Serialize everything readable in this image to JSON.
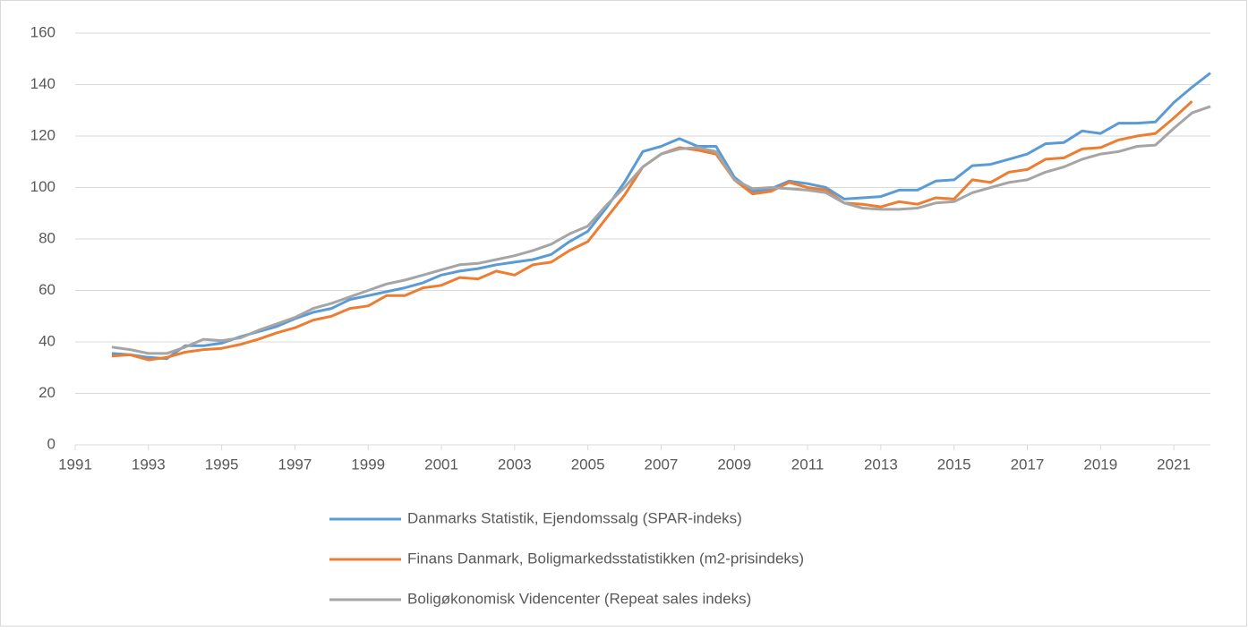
{
  "chart_data": {
    "type": "line",
    "x": [
      1992,
      1992.5,
      1993,
      1993.5,
      1994,
      1994.5,
      1995,
      1995.5,
      1996,
      1996.5,
      1997,
      1997.5,
      1998,
      1998.5,
      1999,
      1999.5,
      2000,
      2000.5,
      2001,
      2001.5,
      2002,
      2002.5,
      2003,
      2003.5,
      2004,
      2004.5,
      2005,
      2005.5,
      2006,
      2006.5,
      2007,
      2007.5,
      2008,
      2008.5,
      2009,
      2009.5,
      2010,
      2010.5,
      2011,
      2011.5,
      2012,
      2012.5,
      2013,
      2013.5,
      2014,
      2014.5,
      2015,
      2015.5,
      2016,
      2016.5,
      2017,
      2017.5,
      2018,
      2018.5,
      2019,
      2019.5,
      2020,
      2020.5,
      2021,
      2021.5,
      2022
    ],
    "series": [
      {
        "name": "Danmarks Statistik, Ejendomssalg (SPAR-indeks)",
        "color": "#5b9bd5",
        "values": [
          35.5,
          35,
          34,
          33.5,
          38.5,
          38.5,
          39.5,
          42,
          44,
          46,
          49,
          51.5,
          53,
          56.5,
          58,
          59.5,
          61,
          63,
          66,
          67.5,
          68.5,
          70,
          71,
          72,
          74,
          79,
          83,
          92,
          102,
          114,
          116,
          119,
          116,
          116,
          104,
          98.5,
          99.5,
          102.5,
          101.5,
          100,
          95.5,
          96,
          96.5,
          99,
          99,
          102.5,
          103,
          108.5,
          109,
          111,
          113,
          117,
          117.5,
          122,
          121,
          125,
          125,
          125.5,
          133,
          139,
          144.5
        ]
      },
      {
        "name": "Finans Danmark, Boligmarkedsstatistikken (m2-prisindeks)",
        "color": "#ed7d31",
        "values": [
          34.5,
          35,
          33,
          34,
          36,
          37,
          37.5,
          39,
          41,
          43.5,
          45.5,
          48.5,
          50,
          53,
          54,
          58,
          58,
          61,
          62,
          65,
          64.5,
          67.5,
          66,
          70,
          71,
          75.5,
          79,
          88,
          97,
          108,
          113,
          115.5,
          114.5,
          113,
          103,
          97.5,
          98.5,
          102,
          100,
          99,
          94,
          93.5,
          92.5,
          94.5,
          93.5,
          96,
          95.5,
          103,
          102,
          106,
          107,
          111,
          111.5,
          115,
          115.5,
          118.5,
          120,
          121,
          127,
          133.5,
          null
        ]
      },
      {
        "name": "Boligøkonomisk Videncenter (Repeat sales indeks)",
        "color": "#a5a5a5",
        "values": [
          38,
          37,
          35.5,
          35.5,
          38,
          41,
          40.5,
          41.5,
          44.5,
          47,
          49.5,
          53,
          55,
          57.5,
          60,
          62.5,
          64,
          66,
          68,
          70,
          70.5,
          72,
          73.5,
          75.5,
          78,
          82,
          85,
          93,
          100,
          108,
          113,
          115,
          115.5,
          114,
          103,
          99.5,
          100,
          99.5,
          99,
          98,
          94,
          92,
          91.5,
          91.5,
          92,
          94,
          94.5,
          98,
          100,
          102,
          103,
          106,
          108,
          111,
          113,
          114,
          116,
          116.5,
          123,
          129,
          131.5
        ]
      }
    ],
    "xlim": [
      1991,
      2022
    ],
    "xticks": [
      1991,
      1993,
      1995,
      1997,
      1999,
      2001,
      2003,
      2005,
      2007,
      2009,
      2011,
      2013,
      2015,
      2017,
      2019,
      2021
    ],
    "ylim": [
      0,
      160
    ],
    "yticks": [
      0,
      20,
      40,
      60,
      80,
      100,
      120,
      140,
      160
    ],
    "grid": true
  }
}
